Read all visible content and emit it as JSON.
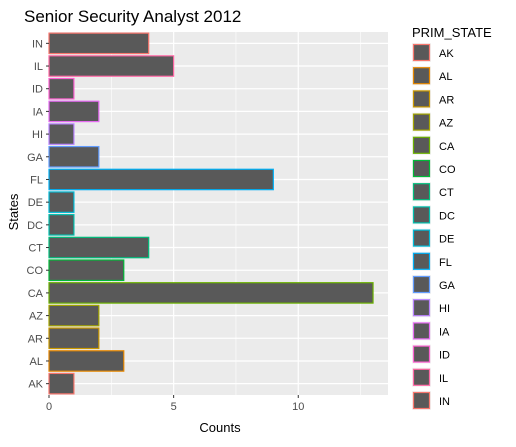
{
  "chart_data": {
    "type": "bar",
    "orientation": "horizontal",
    "title": "Senior Security Analyst 2012",
    "xlabel": "Counts",
    "ylabel": "States",
    "xlim": [
      0,
      13.6
    ],
    "x_ticks": [
      0,
      5,
      10
    ],
    "grid": true,
    "legend_position": "right",
    "legend_title": "PRIM_STATE",
    "bar_fill": "#595959",
    "panel_background": "#ebebeb",
    "categories": [
      "AK",
      "AL",
      "AR",
      "AZ",
      "CA",
      "CO",
      "CT",
      "DC",
      "DE",
      "FL",
      "GA",
      "HI",
      "IA",
      "ID",
      "IL",
      "IN"
    ],
    "values": [
      1,
      3,
      2,
      2,
      13,
      3,
      4,
      1,
      1,
      9,
      2,
      1,
      2,
      1,
      5,
      4
    ],
    "outline_colors": [
      "#F8766D",
      "#E58700",
      "#C99800",
      "#A3A500",
      "#6BB100",
      "#00BA38",
      "#00BF7D",
      "#00C0AF",
      "#00BCD8",
      "#00B0F6",
      "#619CFF",
      "#B983FF",
      "#E76BF3",
      "#FD61D1",
      "#FF67A4",
      "#F8766D"
    ]
  }
}
